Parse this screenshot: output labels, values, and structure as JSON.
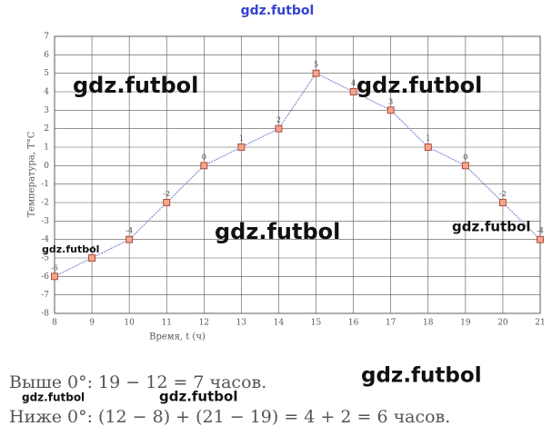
{
  "chart_data": {
    "type": "line",
    "x_label": "Время, t (ч)",
    "y_label": "Температура, T°C",
    "x": [
      8,
      9,
      10,
      11,
      12,
      13,
      14,
      15,
      16,
      17,
      18,
      19,
      20,
      21
    ],
    "series": [
      {
        "name": "T",
        "color": "#8a8ad0",
        "marker_color": "#f3a58e",
        "values": [
          -6,
          -5,
          -4,
          -2,
          0,
          1,
          2,
          5,
          4,
          3,
          1,
          0,
          -2,
          -4
        ]
      }
    ],
    "xlim": [
      8,
      21
    ],
    "ylim": [
      -8,
      7
    ],
    "xticks": [
      8,
      9,
      10,
      11,
      12,
      13,
      14,
      15,
      16,
      17,
      18,
      19,
      20,
      21
    ],
    "yticks": [
      -8,
      -7,
      -6,
      -5,
      -4,
      -3,
      -2,
      -1,
      0,
      1,
      2,
      3,
      4,
      5,
      6,
      7
    ],
    "grid": true
  },
  "solution": [
    "Выше 0°:   19 − 12 = 7 часов.",
    "Ниже 0°:   (12 − 8) + (21 − 19) = 4 + 2 = 6 часов."
  ],
  "watermarks": [
    "gdz.futbol",
    "gdz.futbol",
    "gdz.futbol",
    "gdz.futbol",
    "gdz.futbol",
    "gdz.futbol",
    "gdz.futbol",
    "gdz.futbol",
    "gdz.futbol"
  ]
}
